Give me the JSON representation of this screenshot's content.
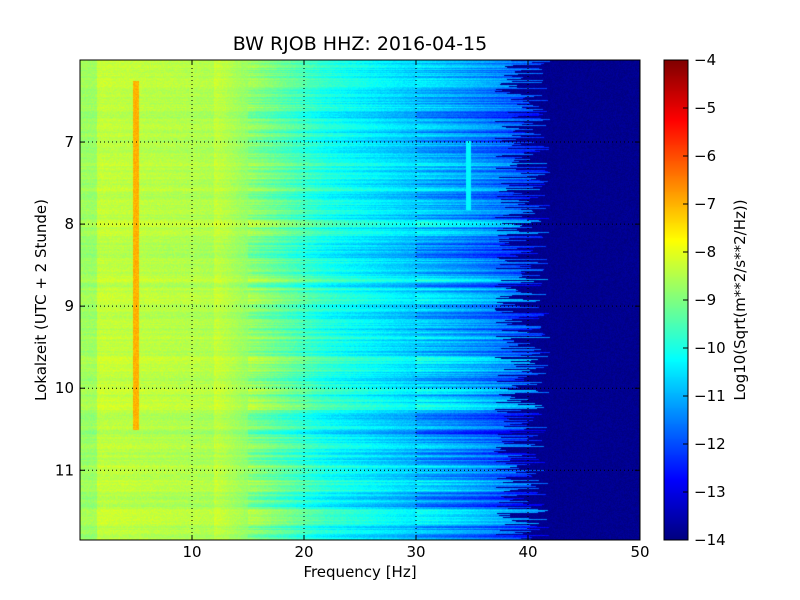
{
  "chart_data": {
    "type": "heatmap",
    "title": "BW RJOB HHZ: 2016-04-15",
    "xlabel": "Frequency [Hz]",
    "ylabel": "Lokalzeit (UTC + 2 Stunde)",
    "xlim": [
      0,
      50
    ],
    "ylim": [
      11.85,
      6.0
    ],
    "y_inverted": true,
    "xticks": [
      10,
      20,
      30,
      40,
      50
    ],
    "yticks": [
      7,
      8,
      9,
      10,
      11
    ],
    "grid": true,
    "colorbar": {
      "label": "Log10(Sqrt(m**2/s**2/Hz))",
      "range": [
        -14,
        -4
      ],
      "ticks": [
        -4,
        -5,
        -6,
        -7,
        -8,
        -9,
        -10,
        -11,
        -12,
        -13,
        -14
      ],
      "colormap": "jet"
    },
    "features": {
      "low_freq_level": -8.3,
      "mid_freq_level": -10.0,
      "high_freq_level": -11.5,
      "noise_floor": -14,
      "cutoff_hz": 40,
      "spectral_line_hz": 5.0,
      "spectral_line_level": -7.0,
      "spectral_line_2_hz": 34.7
    }
  },
  "colors": {
    "background": "#ffffff",
    "axes_frame": "#000000",
    "grid": "#000000"
  }
}
